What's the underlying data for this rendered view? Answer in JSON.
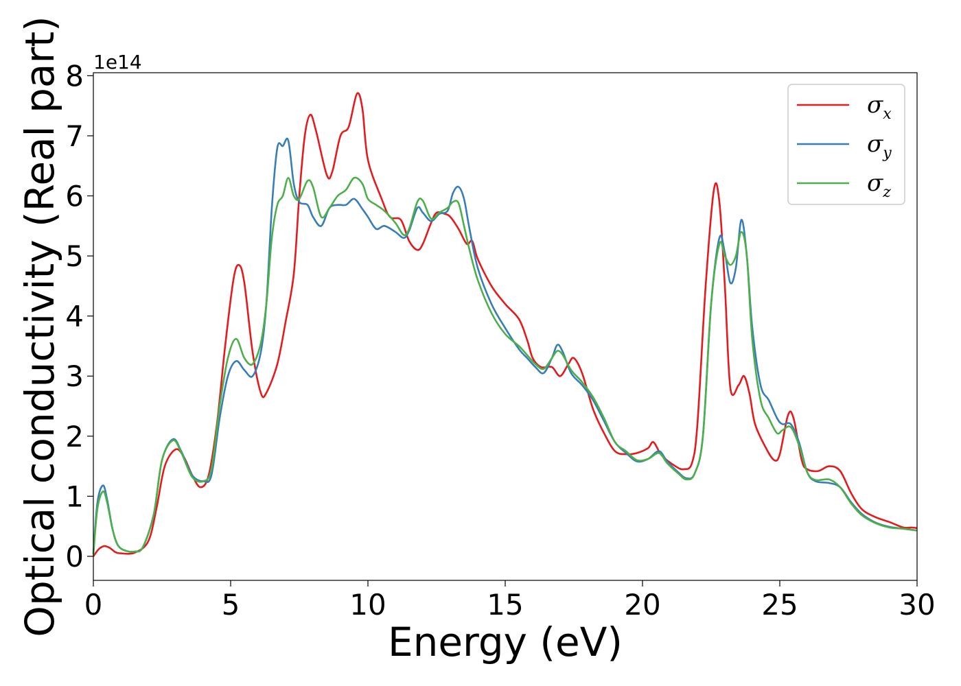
{
  "chart_data": {
    "type": "line",
    "xlabel": "Energy (eV)",
    "ylabel": "Optical conductivity (Real part)",
    "y_offset_label": "1e14",
    "xlim": [
      0,
      30
    ],
    "ylim": [
      -0.4,
      8.05
    ],
    "x_ticks": [
      0,
      5,
      10,
      15,
      20,
      25,
      30
    ],
    "y_ticks": [
      0,
      1,
      2,
      3,
      4,
      5,
      6,
      7,
      8
    ],
    "legend_position": "upper right",
    "grid": false,
    "series": [
      {
        "name": "σx",
        "symbol": "σ",
        "subscript": "x",
        "color": "#e41a1c",
        "points": [
          [
            0,
            0.0
          ],
          [
            0.2,
            0.12
          ],
          [
            0.4,
            0.17
          ],
          [
            0.6,
            0.14
          ],
          [
            0.8,
            0.07
          ],
          [
            1.0,
            0.05
          ],
          [
            1.5,
            0.06
          ],
          [
            2.0,
            0.25
          ],
          [
            2.3,
            0.8
          ],
          [
            2.6,
            1.5
          ],
          [
            3.0,
            1.78
          ],
          [
            3.3,
            1.65
          ],
          [
            3.6,
            1.35
          ],
          [
            3.9,
            1.15
          ],
          [
            4.2,
            1.35
          ],
          [
            4.5,
            2.2
          ],
          [
            4.8,
            3.5
          ],
          [
            5.1,
            4.6
          ],
          [
            5.3,
            4.85
          ],
          [
            5.5,
            4.55
          ],
          [
            5.8,
            3.4
          ],
          [
            6.1,
            2.72
          ],
          [
            6.3,
            2.72
          ],
          [
            6.7,
            3.2
          ],
          [
            7.0,
            3.9
          ],
          [
            7.3,
            4.7
          ],
          [
            7.5,
            6.0
          ],
          [
            7.7,
            7.0
          ],
          [
            7.9,
            7.35
          ],
          [
            8.1,
            7.1
          ],
          [
            8.5,
            6.35
          ],
          [
            8.7,
            6.4
          ],
          [
            9.0,
            7.0
          ],
          [
            9.3,
            7.15
          ],
          [
            9.6,
            7.7
          ],
          [
            9.8,
            7.45
          ],
          [
            10.0,
            6.6
          ],
          [
            10.5,
            5.95
          ],
          [
            10.8,
            5.65
          ],
          [
            11.2,
            5.6
          ],
          [
            11.5,
            5.25
          ],
          [
            11.8,
            5.1
          ],
          [
            12.0,
            5.2
          ],
          [
            12.3,
            5.55
          ],
          [
            12.5,
            5.72
          ],
          [
            12.8,
            5.7
          ],
          [
            13.0,
            5.65
          ],
          [
            13.3,
            5.45
          ],
          [
            13.6,
            5.2
          ],
          [
            13.8,
            5.25
          ],
          [
            14.0,
            4.95
          ],
          [
            14.5,
            4.5
          ],
          [
            15.0,
            4.2
          ],
          [
            15.5,
            3.95
          ],
          [
            15.8,
            3.6
          ],
          [
            16.0,
            3.3
          ],
          [
            16.3,
            3.15
          ],
          [
            16.7,
            3.15
          ],
          [
            17.0,
            3.0
          ],
          [
            17.3,
            3.2
          ],
          [
            17.5,
            3.3
          ],
          [
            17.8,
            3.05
          ],
          [
            18.2,
            2.45
          ],
          [
            18.6,
            2.05
          ],
          [
            19.0,
            1.75
          ],
          [
            19.4,
            1.7
          ],
          [
            19.8,
            1.72
          ],
          [
            20.2,
            1.8
          ],
          [
            20.4,
            1.9
          ],
          [
            20.7,
            1.68
          ],
          [
            21.2,
            1.5
          ],
          [
            21.5,
            1.45
          ],
          [
            21.8,
            1.55
          ],
          [
            22.0,
            2.2
          ],
          [
            22.3,
            4.5
          ],
          [
            22.6,
            6.1
          ],
          [
            22.8,
            5.9
          ],
          [
            23.0,
            4.5
          ],
          [
            23.2,
            2.8
          ],
          [
            23.5,
            2.85
          ],
          [
            23.7,
            3.0
          ],
          [
            23.9,
            2.7
          ],
          [
            24.1,
            2.2
          ],
          [
            24.5,
            1.8
          ],
          [
            24.8,
            1.6
          ],
          [
            25.0,
            1.7
          ],
          [
            25.3,
            2.35
          ],
          [
            25.5,
            2.3
          ],
          [
            25.8,
            1.6
          ],
          [
            26.0,
            1.45
          ],
          [
            26.4,
            1.42
          ],
          [
            26.8,
            1.5
          ],
          [
            27.2,
            1.42
          ],
          [
            27.6,
            1.05
          ],
          [
            28.0,
            0.78
          ],
          [
            28.5,
            0.65
          ],
          [
            29.0,
            0.57
          ],
          [
            29.5,
            0.48
          ],
          [
            29.8,
            0.48
          ],
          [
            30.0,
            0.47
          ]
        ]
      },
      {
        "name": "σy",
        "symbol": "σ",
        "subscript": "y",
        "color": "#377eb8",
        "points": [
          [
            0,
            0.05
          ],
          [
            0.15,
            0.9
          ],
          [
            0.35,
            1.18
          ],
          [
            0.5,
            0.95
          ],
          [
            0.7,
            0.45
          ],
          [
            0.9,
            0.18
          ],
          [
            1.2,
            0.09
          ],
          [
            1.5,
            0.08
          ],
          [
            1.8,
            0.15
          ],
          [
            2.2,
            0.7
          ],
          [
            2.5,
            1.6
          ],
          [
            2.9,
            1.95
          ],
          [
            3.2,
            1.75
          ],
          [
            3.6,
            1.35
          ],
          [
            4.0,
            1.25
          ],
          [
            4.3,
            1.35
          ],
          [
            4.6,
            2.3
          ],
          [
            4.9,
            3.0
          ],
          [
            5.2,
            3.25
          ],
          [
            5.5,
            3.1
          ],
          [
            5.8,
            3.0
          ],
          [
            6.1,
            3.4
          ],
          [
            6.3,
            4.2
          ],
          [
            6.5,
            5.8
          ],
          [
            6.7,
            6.8
          ],
          [
            6.9,
            6.83
          ],
          [
            7.1,
            6.92
          ],
          [
            7.3,
            6.2
          ],
          [
            7.5,
            5.9
          ],
          [
            7.8,
            5.85
          ],
          [
            8.0,
            5.65
          ],
          [
            8.3,
            5.5
          ],
          [
            8.6,
            5.8
          ],
          [
            8.9,
            5.85
          ],
          [
            9.2,
            5.85
          ],
          [
            9.5,
            5.95
          ],
          [
            9.8,
            5.78
          ],
          [
            10.0,
            5.65
          ],
          [
            10.3,
            5.45
          ],
          [
            10.6,
            5.5
          ],
          [
            11.0,
            5.4
          ],
          [
            11.3,
            5.3
          ],
          [
            11.5,
            5.42
          ],
          [
            11.8,
            5.8
          ],
          [
            12.0,
            5.72
          ],
          [
            12.3,
            5.58
          ],
          [
            12.6,
            5.7
          ],
          [
            12.9,
            5.75
          ],
          [
            13.1,
            6.05
          ],
          [
            13.3,
            6.15
          ],
          [
            13.5,
            5.95
          ],
          [
            13.7,
            5.45
          ],
          [
            14.0,
            4.8
          ],
          [
            14.5,
            4.2
          ],
          [
            15.0,
            3.8
          ],
          [
            15.5,
            3.45
          ],
          [
            15.8,
            3.3
          ],
          [
            16.1,
            3.15
          ],
          [
            16.4,
            3.05
          ],
          [
            16.7,
            3.3
          ],
          [
            16.9,
            3.52
          ],
          [
            17.1,
            3.4
          ],
          [
            17.4,
            3.05
          ],
          [
            17.8,
            2.85
          ],
          [
            18.2,
            2.6
          ],
          [
            18.6,
            2.25
          ],
          [
            19.0,
            1.9
          ],
          [
            19.4,
            1.72
          ],
          [
            19.8,
            1.58
          ],
          [
            20.2,
            1.62
          ],
          [
            20.6,
            1.75
          ],
          [
            20.9,
            1.58
          ],
          [
            21.3,
            1.4
          ],
          [
            21.6,
            1.3
          ],
          [
            21.9,
            1.38
          ],
          [
            22.2,
            2.0
          ],
          [
            22.5,
            4.2
          ],
          [
            22.8,
            5.3
          ],
          [
            23.0,
            5.05
          ],
          [
            23.2,
            4.55
          ],
          [
            23.4,
            4.8
          ],
          [
            23.6,
            5.6
          ],
          [
            23.8,
            5.0
          ],
          [
            24.0,
            3.8
          ],
          [
            24.3,
            2.85
          ],
          [
            24.6,
            2.6
          ],
          [
            24.9,
            2.3
          ],
          [
            25.1,
            2.2
          ],
          [
            25.4,
            2.2
          ],
          [
            25.7,
            1.9
          ],
          [
            26.0,
            1.4
          ],
          [
            26.3,
            1.25
          ],
          [
            26.8,
            1.22
          ],
          [
            27.2,
            1.15
          ],
          [
            27.6,
            0.9
          ],
          [
            28.0,
            0.7
          ],
          [
            28.5,
            0.56
          ],
          [
            29.0,
            0.49
          ],
          [
            29.5,
            0.46
          ],
          [
            30.0,
            0.43
          ]
        ]
      },
      {
        "name": "σz",
        "symbol": "σ",
        "subscript": "z",
        "color": "#4daf4a",
        "points": [
          [
            0,
            0.03
          ],
          [
            0.15,
            0.8
          ],
          [
            0.35,
            1.08
          ],
          [
            0.5,
            0.9
          ],
          [
            0.7,
            0.45
          ],
          [
            0.9,
            0.18
          ],
          [
            1.2,
            0.09
          ],
          [
            1.5,
            0.08
          ],
          [
            1.8,
            0.15
          ],
          [
            2.2,
            0.7
          ],
          [
            2.5,
            1.6
          ],
          [
            2.9,
            1.93
          ],
          [
            3.2,
            1.73
          ],
          [
            3.6,
            1.32
          ],
          [
            4.0,
            1.25
          ],
          [
            4.3,
            1.45
          ],
          [
            4.6,
            2.5
          ],
          [
            4.9,
            3.3
          ],
          [
            5.2,
            3.62
          ],
          [
            5.5,
            3.3
          ],
          [
            5.8,
            3.2
          ],
          [
            6.1,
            3.55
          ],
          [
            6.3,
            4.2
          ],
          [
            6.5,
            5.3
          ],
          [
            6.7,
            5.85
          ],
          [
            6.9,
            6.0
          ],
          [
            7.1,
            6.3
          ],
          [
            7.3,
            6.0
          ],
          [
            7.5,
            5.95
          ],
          [
            7.8,
            6.25
          ],
          [
            8.0,
            6.15
          ],
          [
            8.3,
            5.65
          ],
          [
            8.6,
            5.8
          ],
          [
            8.9,
            6.0
          ],
          [
            9.2,
            6.1
          ],
          [
            9.5,
            6.3
          ],
          [
            9.8,
            6.2
          ],
          [
            10.0,
            5.95
          ],
          [
            10.3,
            5.85
          ],
          [
            10.6,
            5.75
          ],
          [
            11.0,
            5.55
          ],
          [
            11.3,
            5.35
          ],
          [
            11.5,
            5.45
          ],
          [
            11.8,
            5.9
          ],
          [
            12.0,
            5.92
          ],
          [
            12.3,
            5.62
          ],
          [
            12.6,
            5.72
          ],
          [
            12.9,
            5.8
          ],
          [
            13.1,
            5.9
          ],
          [
            13.3,
            5.88
          ],
          [
            13.5,
            5.5
          ],
          [
            13.7,
            5.1
          ],
          [
            14.0,
            4.6
          ],
          [
            14.5,
            4.05
          ],
          [
            15.0,
            3.7
          ],
          [
            15.5,
            3.5
          ],
          [
            15.8,
            3.35
          ],
          [
            16.1,
            3.2
          ],
          [
            16.4,
            3.12
          ],
          [
            16.7,
            3.3
          ],
          [
            16.9,
            3.42
          ],
          [
            17.1,
            3.35
          ],
          [
            17.4,
            3.1
          ],
          [
            17.8,
            2.9
          ],
          [
            18.2,
            2.65
          ],
          [
            18.6,
            2.3
          ],
          [
            19.0,
            1.9
          ],
          [
            19.4,
            1.75
          ],
          [
            19.8,
            1.6
          ],
          [
            20.2,
            1.62
          ],
          [
            20.6,
            1.72
          ],
          [
            20.9,
            1.55
          ],
          [
            21.3,
            1.38
          ],
          [
            21.6,
            1.28
          ],
          [
            21.9,
            1.38
          ],
          [
            22.2,
            2.0
          ],
          [
            22.5,
            4.2
          ],
          [
            22.8,
            5.2
          ],
          [
            23.0,
            5.0
          ],
          [
            23.2,
            4.85
          ],
          [
            23.4,
            5.0
          ],
          [
            23.6,
            5.4
          ],
          [
            23.8,
            5.0
          ],
          [
            24.0,
            3.6
          ],
          [
            24.3,
            2.6
          ],
          [
            24.6,
            2.3
          ],
          [
            24.9,
            2.05
          ],
          [
            25.1,
            2.1
          ],
          [
            25.4,
            2.15
          ],
          [
            25.7,
            1.85
          ],
          [
            26.0,
            1.4
          ],
          [
            26.3,
            1.27
          ],
          [
            26.8,
            1.28
          ],
          [
            27.2,
            1.15
          ],
          [
            27.6,
            0.88
          ],
          [
            28.0,
            0.68
          ],
          [
            28.5,
            0.55
          ],
          [
            29.0,
            0.48
          ],
          [
            29.5,
            0.46
          ],
          [
            30.0,
            0.43
          ]
        ]
      }
    ]
  }
}
